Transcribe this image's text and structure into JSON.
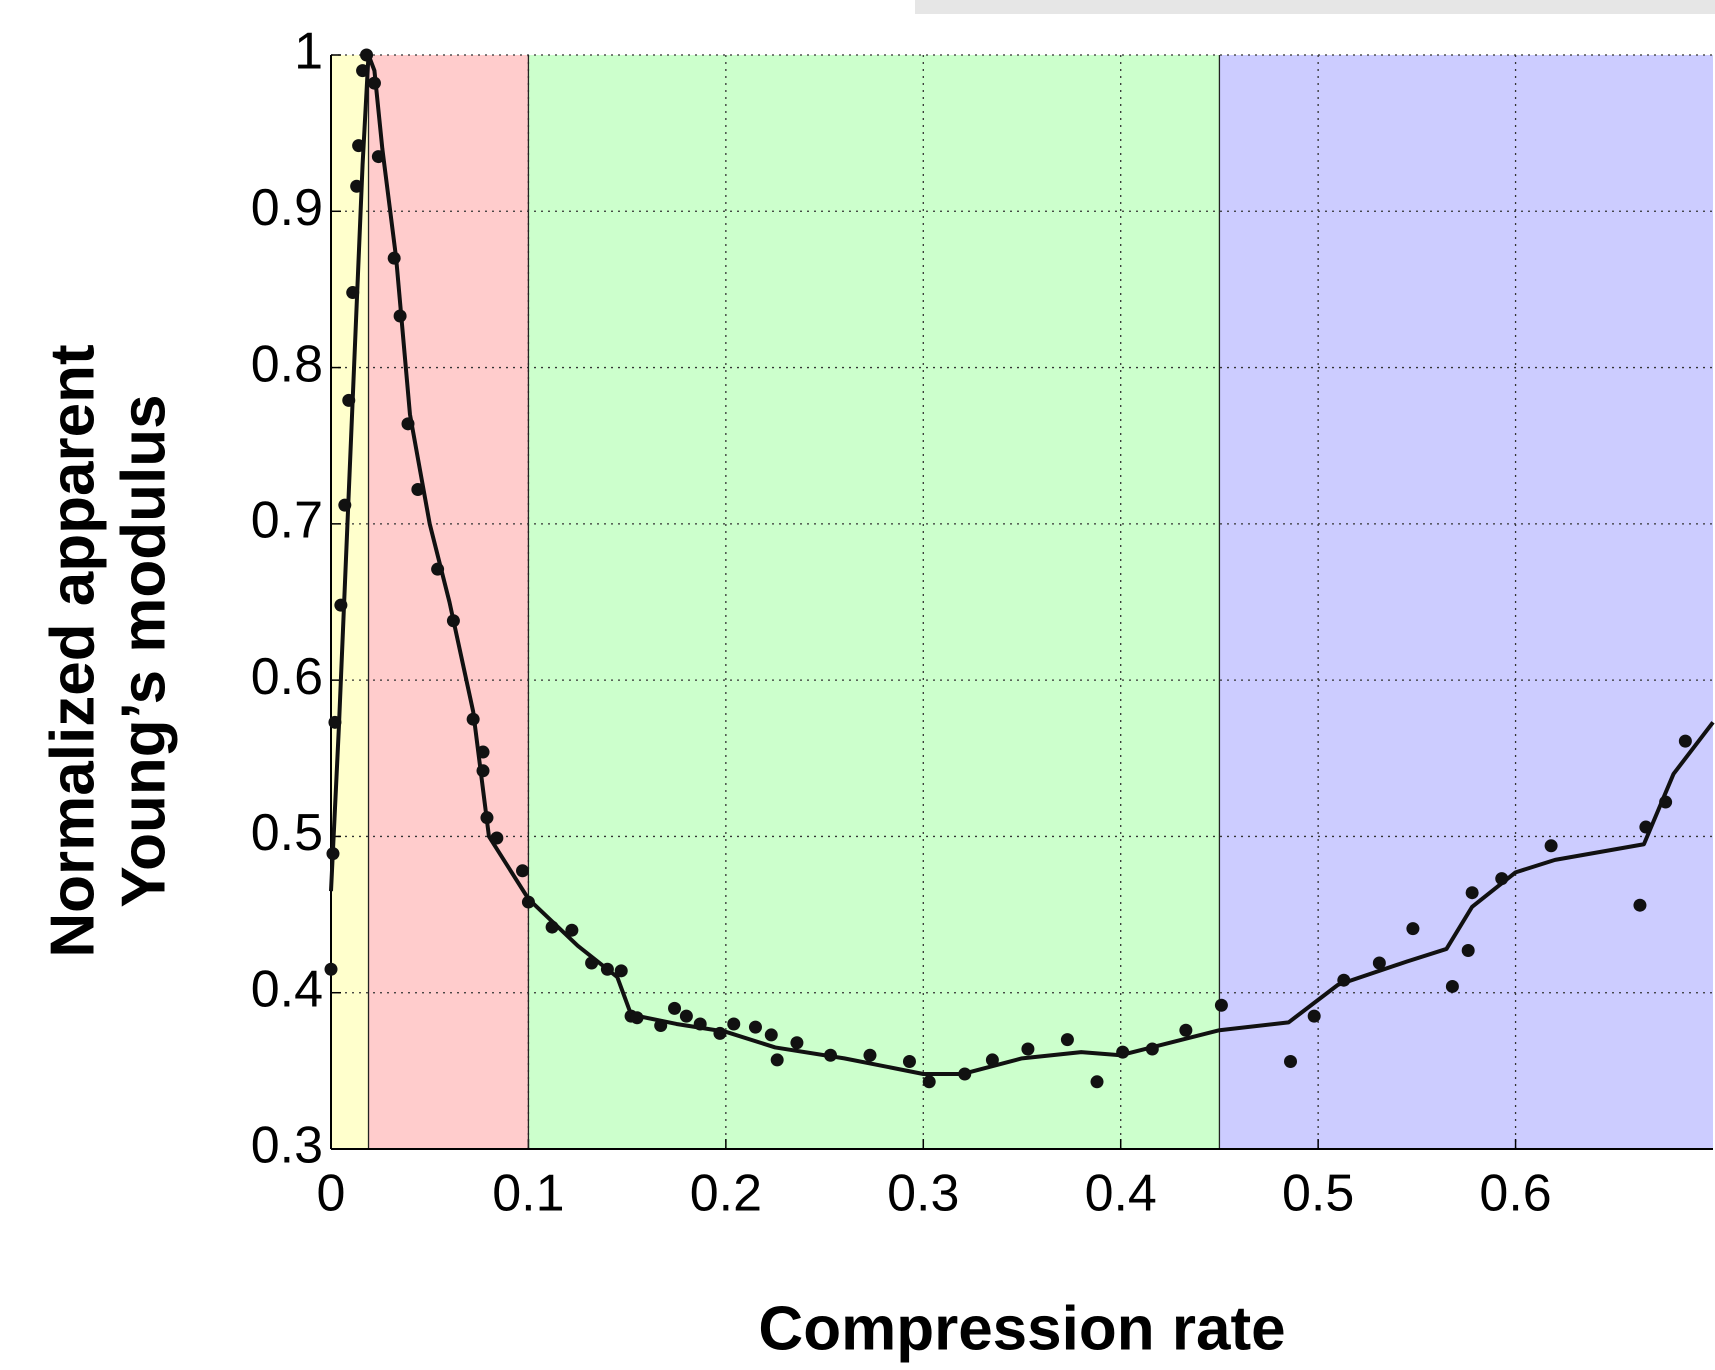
{
  "chart_data": {
    "type": "scatter",
    "x_label": "Compression rate",
    "y_label": [
      "Normalized apparent",
      "Young’s modulus"
    ],
    "xlim": [
      0,
      0.7
    ],
    "ylim": [
      0.3,
      1
    ],
    "xticks": [
      0,
      0.1,
      0.2,
      0.3,
      0.4,
      0.5,
      0.6
    ],
    "yticks": [
      0.3,
      0.4,
      0.5,
      0.6,
      0.7,
      0.8,
      0.9,
      1
    ],
    "grid": true,
    "regions": [
      {
        "xlim": [
          0,
          0.019
        ],
        "color": "#ffffcc"
      },
      {
        "xlim": [
          0.019,
          0.1
        ],
        "color": "#ffcccc"
      },
      {
        "xlim": [
          0.1,
          0.45
        ],
        "color": "#ccffcc"
      },
      {
        "xlim": [
          0.45,
          0.7
        ],
        "color": "#ccccff"
      }
    ],
    "points": {
      "color": "#111111",
      "x": [
        0,
        0.001,
        0.002,
        0.005,
        0.007,
        0.009,
        0.011,
        0.013,
        0.014,
        0.016,
        0.018,
        0.022,
        0.024,
        0.032,
        0.035,
        0.039,
        0.044,
        0.054,
        0.062,
        0.072,
        0.077,
        0.077,
        0.079,
        0.084,
        0.097,
        0.1,
        0.112,
        0.122,
        0.132,
        0.14,
        0.147,
        0.152,
        0.155,
        0.167,
        0.174,
        0.18,
        0.187,
        0.197,
        0.204,
        0.215,
        0.223,
        0.226,
        0.236,
        0.253,
        0.273,
        0.293,
        0.303,
        0.321,
        0.335,
        0.353,
        0.373,
        0.388,
        0.401,
        0.416,
        0.433,
        0.451,
        0.486,
        0.498,
        0.513,
        0.531,
        0.548,
        0.568,
        0.576,
        0.578,
        0.593,
        0.618,
        0.663,
        0.666,
        0.676,
        0.686
      ],
      "values": [
        0.415,
        0.489,
        0.573,
        0.648,
        0.712,
        0.779,
        0.848,
        0.916,
        0.942,
        0.99,
        1.0,
        0.982,
        0.935,
        0.87,
        0.833,
        0.764,
        0.722,
        0.671,
        0.638,
        0.575,
        0.554,
        0.542,
        0.512,
        0.499,
        0.478,
        0.458,
        0.442,
        0.44,
        0.419,
        0.415,
        0.414,
        0.385,
        0.384,
        0.379,
        0.39,
        0.385,
        0.38,
        0.374,
        0.38,
        0.378,
        0.373,
        0.357,
        0.368,
        0.36,
        0.36,
        0.356,
        0.343,
        0.348,
        0.357,
        0.364,
        0.37,
        0.343,
        0.362,
        0.364,
        0.376,
        0.392,
        0.356,
        0.385,
        0.408,
        0.419,
        0.441,
        0.404,
        0.427,
        0.464,
        0.473,
        0.494,
        0.456,
        0.506,
        0.522,
        0.561
      ]
    },
    "fit": {
      "color": "#111111",
      "x": [
        0,
        0.004,
        0.009,
        0.013,
        0.016,
        0.019,
        0.022,
        0.026,
        0.033,
        0.04,
        0.05,
        0.06,
        0.072,
        0.08,
        0.1,
        0.125,
        0.145,
        0.152,
        0.175,
        0.2,
        0.225,
        0.26,
        0.3,
        0.32,
        0.35,
        0.38,
        0.4,
        0.45,
        0.485,
        0.51,
        0.545,
        0.565,
        0.578,
        0.6,
        0.62,
        0.665,
        0.68,
        0.7
      ],
      "values": [
        0.465,
        0.57,
        0.72,
        0.84,
        0.93,
        1.0,
        0.99,
        0.94,
        0.87,
        0.77,
        0.7,
        0.65,
        0.58,
        0.5,
        0.46,
        0.43,
        0.41,
        0.386,
        0.38,
        0.375,
        0.365,
        0.358,
        0.348,
        0.348,
        0.358,
        0.362,
        0.36,
        0.376,
        0.381,
        0.405,
        0.42,
        0.428,
        0.455,
        0.477,
        0.485,
        0.495,
        0.54,
        0.573
      ]
    }
  }
}
